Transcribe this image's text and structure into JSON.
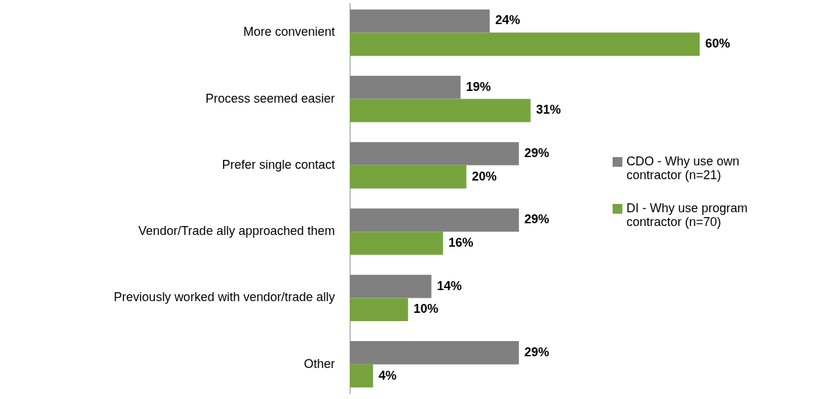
{
  "chart_data": {
    "type": "bar",
    "orientation": "horizontal",
    "categories": [
      "More convenient",
      "Process seemed easier",
      "Prefer single contact",
      "Vendor/Trade ally approached them",
      "Previously worked with vendor/trade ally",
      "Other"
    ],
    "series": [
      {
        "name": "CDO - Why use own contractor (n=21)",
        "color": "#808080",
        "values": [
          24,
          19,
          29,
          29,
          14,
          29
        ],
        "value_labels": [
          "24%",
          "19%",
          "29%",
          "29%",
          "14%",
          "29%"
        ]
      },
      {
        "name": "DI - Why use program contractor (n=70)",
        "color": "#77a33f",
        "values": [
          60,
          31,
          20,
          16,
          10,
          4
        ],
        "value_labels": [
          "60%",
          "31%",
          "20%",
          "16%",
          "10%",
          "4%"
        ]
      }
    ],
    "legend": "right"
  }
}
